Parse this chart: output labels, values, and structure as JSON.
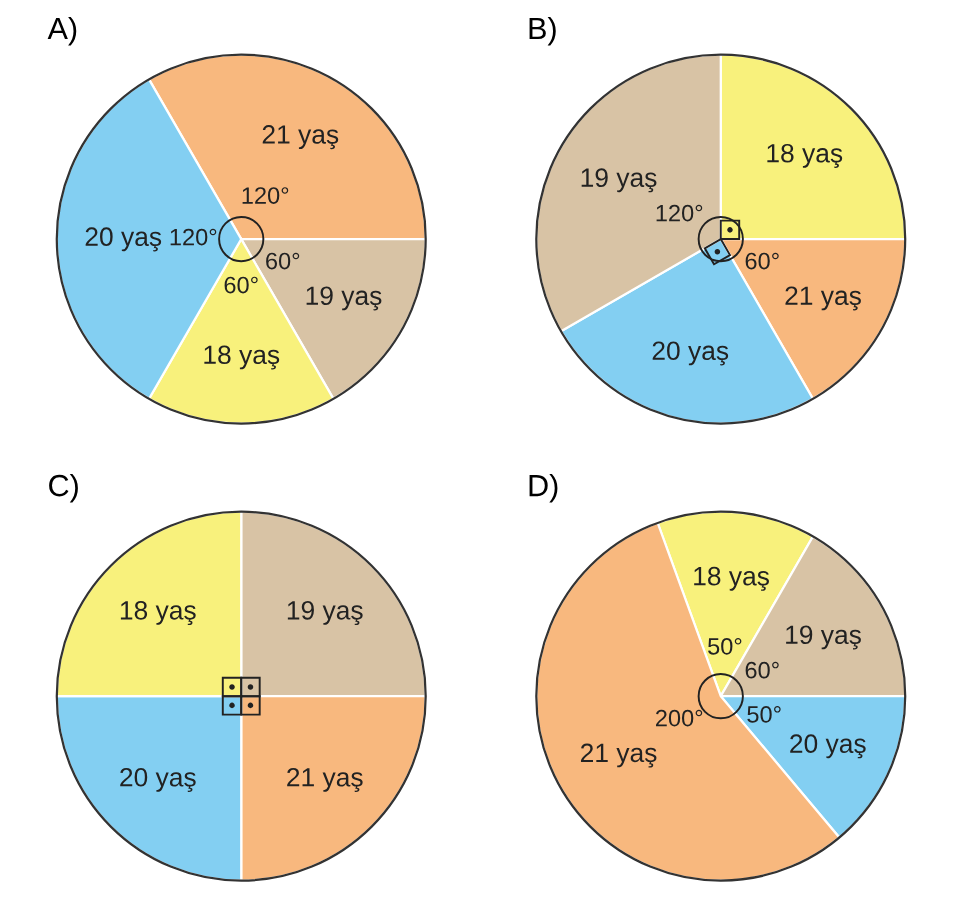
{
  "chart_data": [
    {
      "type": "pie",
      "title": "A)",
      "categories": [
        "21 yaş",
        "19 yaş",
        "18 yaş",
        "20 yaş"
      ],
      "values": [
        120,
        60,
        60,
        120
      ],
      "colors": [
        "#f8b87e",
        "#d8c3a5",
        "#f8f17c",
        "#83cff2"
      ],
      "value_labels": [
        "120°",
        "60°",
        "60°",
        "120°"
      ]
    },
    {
      "type": "pie",
      "title": "B)",
      "categories": [
        "18 yaş",
        "21 yaş",
        "20 yaş",
        "19 yaş"
      ],
      "values": [
        90,
        60,
        90,
        120
      ],
      "colors": [
        "#f8f17c",
        "#f8b87e",
        "#83cff2",
        "#d8c3a5"
      ],
      "value_labels": [
        null,
        "60°",
        null,
        "120°"
      ]
    },
    {
      "type": "pie",
      "title": "C)",
      "categories": [
        "19 yaş",
        "21 yaş",
        "20 yaş",
        "18 yaş"
      ],
      "values": [
        25,
        25,
        25,
        25
      ],
      "colors": [
        "#d8c3a5",
        "#f8b87e",
        "#83cff2",
        "#f8f17c"
      ],
      "value_labels": [
        null,
        null,
        null,
        null
      ]
    },
    {
      "type": "pie",
      "title": "D)",
      "categories": [
        "18 yaş",
        "19 yaş",
        "20 yaş",
        "21 yaş"
      ],
      "values": [
        50,
        60,
        50,
        200
      ],
      "colors": [
        "#f8f17c",
        "#d8c3a5",
        "#83cff2",
        "#f8b87e"
      ],
      "value_labels": [
        "50°",
        "60°",
        "50°",
        "200°"
      ]
    }
  ]
}
